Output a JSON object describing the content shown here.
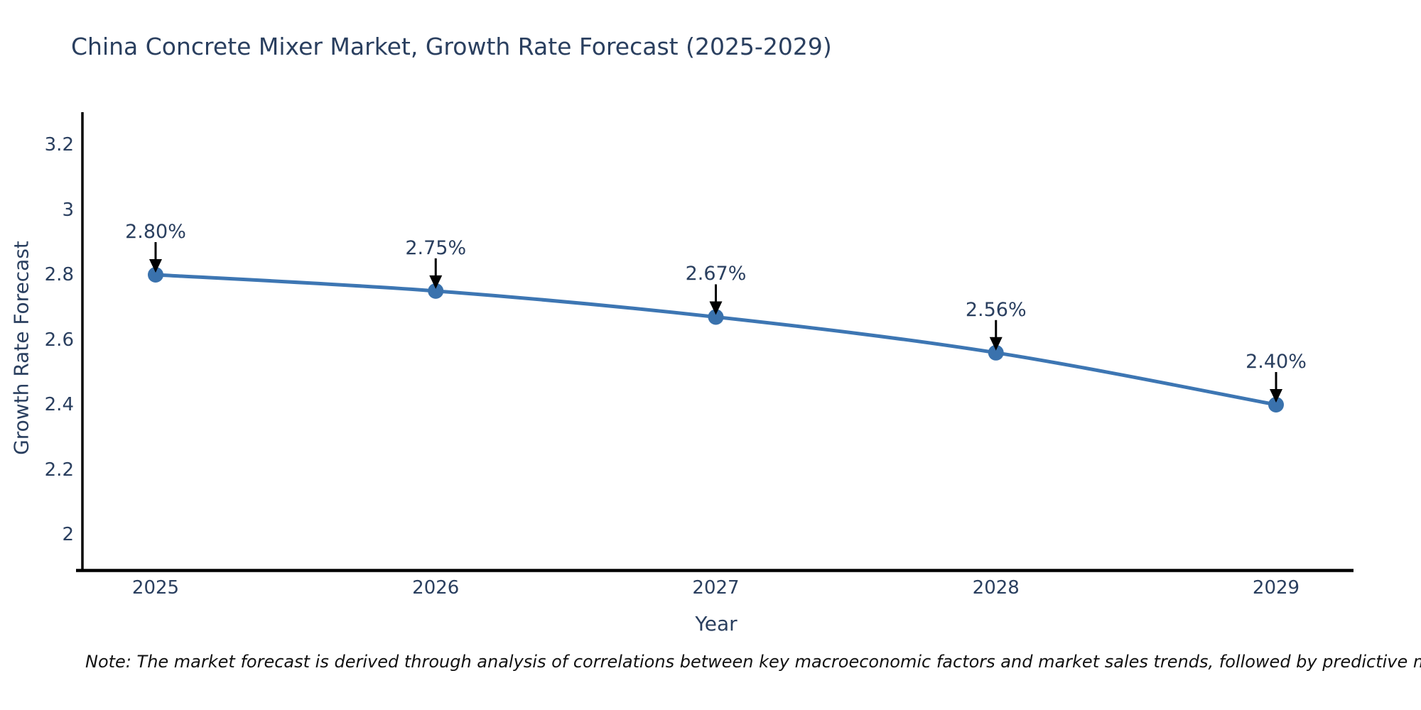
{
  "footnote": "Note: The market forecast is derived through analysis of correlations between key macroeconomic factors and market sales trends, followed by predictive modeling to project future sales",
  "chart_data": {
    "type": "line",
    "title": "China Concrete Mixer Market, Growth Rate Forecast (2025-2029)",
    "xlabel": "Year",
    "ylabel": "Growth Rate Forecast",
    "categories": [
      "2025",
      "2026",
      "2027",
      "2028",
      "2029"
    ],
    "values": [
      2.8,
      2.75,
      2.67,
      2.56,
      2.4
    ],
    "point_labels": [
      "2.80%",
      "2.75%",
      "2.67%",
      "2.56%",
      "2.40%"
    ],
    "ytick_labels": [
      "3.2",
      "3",
      "2.8",
      "2.6",
      "2.4",
      "2.2",
      "2"
    ],
    "ytick_values": [
      3.2,
      3.0,
      2.8,
      2.6,
      2.4,
      2.2,
      2.0
    ],
    "ylim": [
      1.89,
      3.3
    ],
    "grid": false,
    "legend": false,
    "marker": "circle",
    "annotation_arrows": "down",
    "colors": {
      "line": "#3d76b3",
      "marker_fill": "#3a72ad",
      "text": "#2a3f5f",
      "arrow": "#000000",
      "axis_line": "#000000",
      "background": "#ffffff"
    }
  }
}
